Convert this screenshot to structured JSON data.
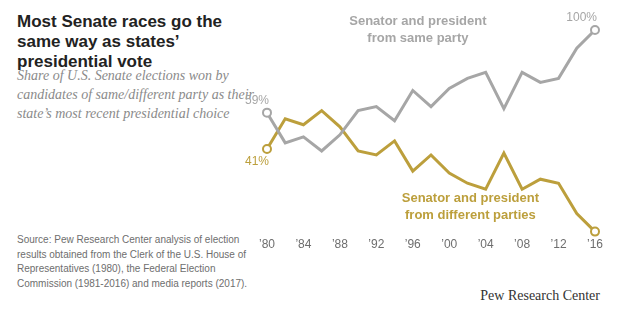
{
  "chart_data": {
    "type": "line",
    "title": "Most Senate races go the same way as states’ presidential vote",
    "subtitle": "Share of U.S. Senate elections won by candidates of same/different party as their state’s most recent presidential choice",
    "source": "Source: Pew Research Center analysis of election results obtained from the Clerk of the U.S. House of Representatives (1980), the Federal Election Commission (1981-2016) and media reports (2017).",
    "credit": "Pew Research Center",
    "x": [
      1980,
      1982,
      1984,
      1986,
      1988,
      1990,
      1992,
      1994,
      1996,
      1998,
      2000,
      2002,
      2004,
      2006,
      2008,
      2010,
      2012,
      2014,
      2016
    ],
    "xlim": [
      1980,
      2016
    ],
    "xticks": [
      {
        "value": 1980,
        "label": "’80"
      },
      {
        "value": 1984,
        "label": "’84"
      },
      {
        "value": 1988,
        "label": "’88"
      },
      {
        "value": 1992,
        "label": "’92"
      },
      {
        "value": 1996,
        "label": "’96"
      },
      {
        "value": 2000,
        "label": "’00"
      },
      {
        "value": 2004,
        "label": "’04"
      },
      {
        "value": 2008,
        "label": "’08"
      },
      {
        "value": 2012,
        "label": "’12"
      },
      {
        "value": 2016,
        "label": "’16"
      }
    ],
    "ylim": [
      0,
      100
    ],
    "grid": false,
    "tick_labels": "x",
    "series": [
      {
        "name": "Senator and president from same party",
        "color": "#a6a6a6",
        "marker": "circle",
        "values": [
          59,
          44,
          47,
          40,
          48,
          60,
          62,
          55,
          70,
          62,
          71,
          76,
          79,
          61,
          79,
          74,
          76,
          91,
          100
        ],
        "value_labels": [
          "59%",
          null,
          null,
          null,
          null,
          null,
          null,
          null,
          null,
          null,
          null,
          null,
          null,
          null,
          null,
          null,
          null,
          null,
          "100%"
        ]
      },
      {
        "name": "Senator and president from different parties",
        "color": "#bc9f3c",
        "marker": "circle",
        "values": [
          41,
          56,
          53,
          60,
          52,
          40,
          38,
          45,
          30,
          38,
          29,
          24,
          21,
          39,
          21,
          26,
          24,
          9,
          0
        ],
        "value_labels": [
          "41%",
          null,
          null,
          null,
          null,
          null,
          null,
          null,
          null,
          null,
          null,
          null,
          null,
          null,
          null,
          null,
          null,
          null,
          null
        ]
      }
    ]
  }
}
